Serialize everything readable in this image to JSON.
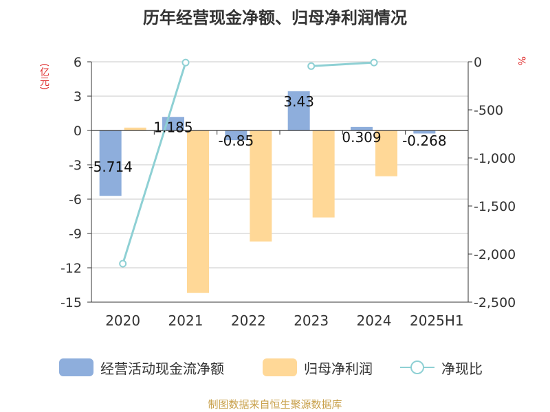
{
  "chart_data": {
    "type": "bar",
    "title": "历年经营现金净额、归母净利润情况",
    "ylabel": "(亿元)",
    "y2label": "%",
    "categories": [
      "2020",
      "2021",
      "2022",
      "2023",
      "2024",
      "2025H1"
    ],
    "ylim": [
      -15,
      6
    ],
    "yticks": [
      6,
      3,
      0,
      -3,
      -6,
      -9,
      -12,
      -15
    ],
    "y2lim": [
      -2500,
      0
    ],
    "y2ticks": [
      0,
      -500,
      -1000,
      -1500,
      -2000,
      -2500
    ],
    "y2tick_labels": [
      "0",
      "-500",
      "-1,000",
      "-1,500",
      "-2,000",
      "-2,500"
    ],
    "grid": true,
    "legend_position": "bottom",
    "series": [
      {
        "name": "经营活动现金流净额",
        "kind": "bar",
        "axis": "left",
        "color": "#8eaedc",
        "values": [
          -5.714,
          1.185,
          -0.85,
          3.43,
          0.309,
          -0.268
        ],
        "labels": [
          "-5.714",
          "1.185",
          "-0.85",
          "3.43",
          "0.309",
          "-0.268"
        ]
      },
      {
        "name": "归母净利润",
        "kind": "bar",
        "axis": "left",
        "color": "#ffd897",
        "values": [
          0.25,
          -14.2,
          -9.7,
          -7.6,
          -4.0,
          -0.05
        ]
      },
      {
        "name": "净现比",
        "kind": "line",
        "axis": "right",
        "color": "#8ed0d4",
        "values": [
          -2100,
          -8,
          null,
          -45,
          -8,
          null
        ]
      }
    ]
  },
  "footer": "制图数据来自恒生聚源数据库"
}
